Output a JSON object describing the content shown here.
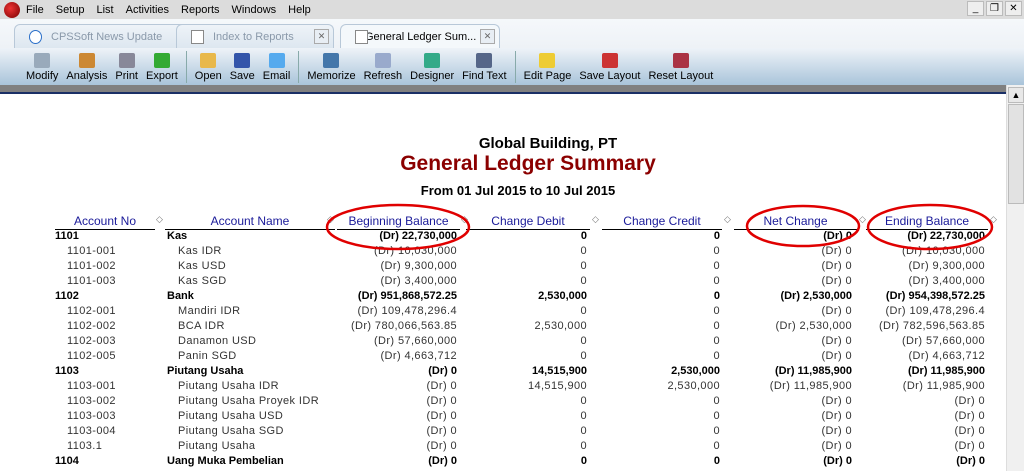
{
  "menu": [
    "File",
    "Setup",
    "List",
    "Activities",
    "Reports",
    "Windows",
    "Help"
  ],
  "tabs": [
    {
      "label": "CPSSoft News Update"
    },
    {
      "label": "Index to Reports"
    },
    {
      "label": "General Ledger Sum..."
    }
  ],
  "toolbar": [
    "Modify",
    "Analysis",
    "Print",
    "Export",
    "|",
    "Open",
    "Save",
    "Email",
    "|",
    "Memorize",
    "Refresh",
    "Designer",
    "Find Text",
    "|",
    "Edit Page",
    "Save Layout",
    "Reset Layout"
  ],
  "report": {
    "company": "Global Building, PT",
    "title": "General Ledger Summary",
    "period": "From 01 Jul 2015 to 10 Jul 2015",
    "columns": [
      "Account No",
      "Account Name",
      "Beginning Balance",
      "Change Debit",
      "Change Credit",
      "Net Change",
      "Ending Balance"
    ],
    "rows": [
      {
        "bold": true,
        "cells": [
          "1101",
          "Kas",
          "(Dr) 22,730,000",
          "0",
          "0",
          "(Dr) 0",
          "(Dr) 22,730,000"
        ]
      },
      {
        "bold": false,
        "cells": [
          "1101-001",
          "Kas IDR",
          "(Dr) 10,030,000",
          "0",
          "0",
          "(Dr) 0",
          "(Dr) 10,030,000"
        ]
      },
      {
        "bold": false,
        "cells": [
          "1101-002",
          "Kas USD",
          "(Dr) 9,300,000",
          "0",
          "0",
          "(Dr) 0",
          "(Dr) 9,300,000"
        ]
      },
      {
        "bold": false,
        "cells": [
          "1101-003",
          "Kas SGD",
          "(Dr) 3,400,000",
          "0",
          "0",
          "(Dr) 0",
          "(Dr) 3,400,000"
        ]
      },
      {
        "bold": true,
        "cells": [
          "1102",
          "Bank",
          "(Dr) 951,868,572.25",
          "2,530,000",
          "0",
          "(Dr) 2,530,000",
          "(Dr) 954,398,572.25"
        ]
      },
      {
        "bold": false,
        "cells": [
          "1102-001",
          "Mandiri IDR",
          "(Dr) 109,478,296.4",
          "0",
          "0",
          "(Dr) 0",
          "(Dr) 109,478,296.4"
        ]
      },
      {
        "bold": false,
        "cells": [
          "1102-002",
          "BCA IDR",
          "(Dr) 780,066,563.85",
          "2,530,000",
          "0",
          "(Dr) 2,530,000",
          "(Dr) 782,596,563.85"
        ]
      },
      {
        "bold": false,
        "cells": [
          "1102-003",
          "Danamon USD",
          "(Dr) 57,660,000",
          "0",
          "0",
          "(Dr) 0",
          "(Dr) 57,660,000"
        ]
      },
      {
        "bold": false,
        "cells": [
          "1102-005",
          "Panin SGD",
          "(Dr) 4,663,712",
          "0",
          "0",
          "(Dr) 0",
          "(Dr) 4,663,712"
        ]
      },
      {
        "bold": true,
        "cells": [
          "1103",
          "Piutang Usaha",
          "(Dr) 0",
          "14,515,900",
          "2,530,000",
          "(Dr) 11,985,900",
          "(Dr) 11,985,900"
        ]
      },
      {
        "bold": false,
        "cells": [
          "1103-001",
          "Piutang Usaha IDR",
          "(Dr) 0",
          "14,515,900",
          "2,530,000",
          "(Dr) 11,985,900",
          "(Dr) 11,985,900"
        ]
      },
      {
        "bold": false,
        "cells": [
          "1103-002",
          "Piutang Usaha Proyek IDR",
          "(Dr) 0",
          "0",
          "0",
          "(Dr) 0",
          "(Dr) 0"
        ]
      },
      {
        "bold": false,
        "cells": [
          "1103-003",
          "Piutang Usaha USD",
          "(Dr) 0",
          "0",
          "0",
          "(Dr) 0",
          "(Dr) 0"
        ]
      },
      {
        "bold": false,
        "cells": [
          "1103-004",
          "Piutang Usaha SGD",
          "(Dr) 0",
          "0",
          "0",
          "(Dr) 0",
          "(Dr) 0"
        ]
      },
      {
        "bold": false,
        "cells": [
          "1103.1",
          "Piutang Usaha",
          "(Dr) 0",
          "0",
          "0",
          "(Dr) 0",
          "(Dr) 0"
        ]
      },
      {
        "bold": true,
        "cells": [
          "1104",
          "Uang Muka Pembelian",
          "(Dr) 0",
          "0",
          "0",
          "(Dr) 0",
          "(Dr) 0"
        ]
      }
    ]
  },
  "colors": {
    "title": "#8b0000",
    "header": "#1a1a99",
    "annotation": "#e00000"
  }
}
